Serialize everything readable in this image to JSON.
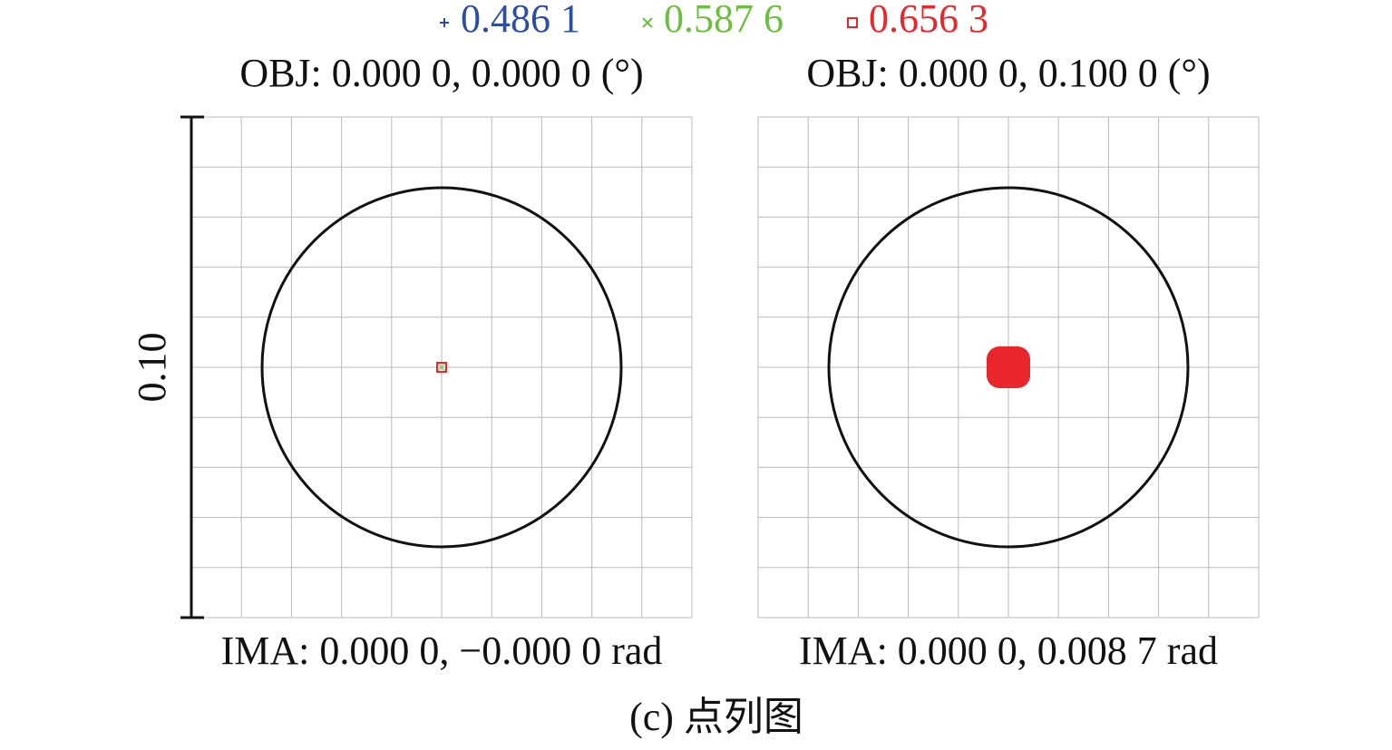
{
  "legend": [
    {
      "label": "0.486 1",
      "color": "#2b4ea2"
    },
    {
      "label": "0.587 6",
      "color": "#6cbf3e"
    },
    {
      "label": "0.656 3",
      "color": "#e8262b"
    }
  ],
  "panels": [
    {
      "obj": "OBJ: 0.000 0, 0.000 0 (°)",
      "ima": "IMA: 0.000 0, −0.000 0 rad"
    },
    {
      "obj": "OBJ: 0.000 0, 0.100 0 (°)",
      "ima": "IMA: 0.000 0, 0.008 7 rad"
    }
  ],
  "scale_label": "0.10",
  "caption": "(c) 点列图"
}
